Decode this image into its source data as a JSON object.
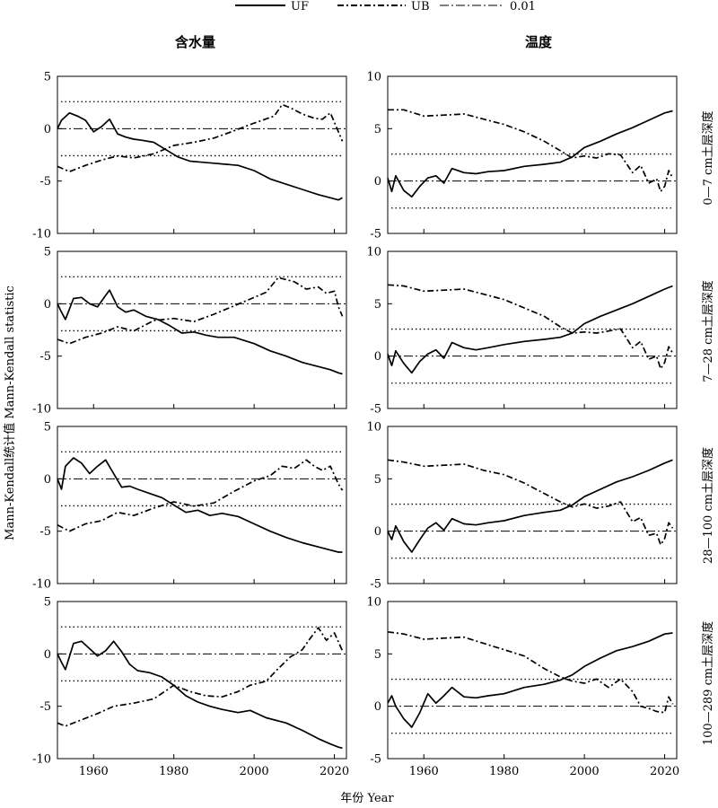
{
  "legend": {
    "uf_label": "UF",
    "ub_label": "UB",
    "sig_label": "0.01"
  },
  "columns": {
    "left_title": "含水量",
    "right_title": "温度"
  },
  "axes": {
    "ylabel": "Mann-Kendall统计值 Mann-Kendall statistic",
    "xlabel": "年份 Year",
    "x_ticks": [
      1960,
      1980,
      2000,
      2020
    ],
    "left_y_ticks": [
      5,
      0,
      -5,
      -10
    ],
    "right_y_ticks": [
      10,
      5,
      0,
      -5
    ],
    "left_ylim": [
      -10,
      5
    ],
    "right_ylim": [
      -5,
      10
    ],
    "xlim": [
      1951,
      2023
    ]
  },
  "rows": {
    "labels": [
      "0—7 cm土层深度",
      "7—28 cm土层深度",
      "28—100 cm土层深度",
      "100—289 cm土层深度"
    ]
  },
  "colors": {
    "line": "#000000",
    "background": "#ffffff"
  },
  "chart_data": [
    {
      "type": "line",
      "panel": "soil-moisture-0-7cm",
      "x_start": 1951,
      "x_end": 2022,
      "ylim": [
        -10,
        5
      ],
      "sig": 2.58,
      "series": [
        {
          "name": "UF",
          "x": [
            1951,
            1952,
            1954,
            1956,
            1958,
            1960,
            1962,
            1964,
            1966,
            1968,
            1970,
            1972,
            1975,
            1978,
            1981,
            1984,
            1987,
            1990,
            1993,
            1996,
            2000,
            2004,
            2008,
            2012,
            2016,
            2019,
            2021,
            2022
          ],
          "y": [
            0.0,
            0.8,
            1.5,
            1.2,
            0.8,
            -0.3,
            0.2,
            0.9,
            -0.5,
            -0.8,
            -1.0,
            -1.1,
            -1.3,
            -2.0,
            -2.7,
            -3.1,
            -3.2,
            -3.3,
            -3.4,
            -3.5,
            -4.0,
            -4.8,
            -5.3,
            -5.8,
            -6.3,
            -6.6,
            -6.8,
            -6.6
          ]
        },
        {
          "name": "UB",
          "x": [
            1951,
            1954,
            1958,
            1962,
            1966,
            1970,
            1975,
            1980,
            1985,
            1990,
            1995,
            1999,
            2002,
            2005,
            2007,
            2009,
            2012,
            2015,
            2017,
            2019,
            2021,
            2022
          ],
          "y": [
            -3.6,
            -4.1,
            -3.5,
            -3.0,
            -2.6,
            -2.8,
            -2.4,
            -1.6,
            -1.3,
            -0.9,
            -0.2,
            0.4,
            0.8,
            1.2,
            2.3,
            2.0,
            1.4,
            1.0,
            0.9,
            1.5,
            -0.3,
            -1.2
          ]
        }
      ]
    },
    {
      "type": "line",
      "panel": "temperature-0-7cm",
      "x_start": 1951,
      "x_end": 2022,
      "ylim": [
        -5,
        10
      ],
      "sig": 2.58,
      "series": [
        {
          "name": "UF",
          "x": [
            1951,
            1952,
            1953,
            1955,
            1957,
            1959,
            1961,
            1963,
            1965,
            1967,
            1970,
            1973,
            1976,
            1980,
            1985,
            1990,
            1994,
            1997,
            2000,
            2004,
            2008,
            2012,
            2016,
            2020,
            2022
          ],
          "y": [
            0.3,
            -1.0,
            0.5,
            -0.9,
            -1.5,
            -0.5,
            0.3,
            0.5,
            -0.2,
            1.2,
            0.8,
            0.7,
            0.9,
            1.0,
            1.4,
            1.6,
            1.8,
            2.3,
            3.2,
            3.8,
            4.5,
            5.1,
            5.8,
            6.5,
            6.7
          ]
        },
        {
          "name": "UB",
          "x": [
            1951,
            1955,
            1960,
            1965,
            1970,
            1975,
            1980,
            1985,
            1990,
            1994,
            1997,
            2000,
            2003,
            2006,
            2009,
            2012,
            2014,
            2016,
            2018,
            2019,
            2020,
            2021,
            2022
          ],
          "y": [
            6.8,
            6.8,
            6.2,
            6.3,
            6.4,
            5.9,
            5.4,
            4.7,
            3.8,
            2.9,
            2.2,
            2.4,
            2.2,
            2.6,
            2.5,
            0.8,
            1.5,
            -0.2,
            0.2,
            -1.0,
            -0.5,
            1.0,
            0.3
          ]
        }
      ]
    },
    {
      "type": "line",
      "panel": "soil-moisture-7-28cm",
      "x_start": 1951,
      "x_end": 2022,
      "ylim": [
        -10,
        5
      ],
      "sig": 2.58,
      "series": [
        {
          "name": "UF",
          "x": [
            1951,
            1952,
            1953,
            1955,
            1957,
            1959,
            1961,
            1963,
            1964,
            1966,
            1968,
            1970,
            1973,
            1976,
            1979,
            1982,
            1985,
            1988,
            1991,
            1995,
            2000,
            2004,
            2008,
            2012,
            2016,
            2019,
            2021,
            2022
          ],
          "y": [
            0.0,
            -0.8,
            -1.5,
            0.5,
            0.6,
            0.0,
            -0.3,
            0.8,
            1.3,
            -0.3,
            -0.8,
            -0.6,
            -1.2,
            -1.5,
            -2.1,
            -2.8,
            -2.7,
            -3.0,
            -3.2,
            -3.2,
            -3.8,
            -4.5,
            -5.0,
            -5.6,
            -6.0,
            -6.3,
            -6.6,
            -6.7
          ]
        },
        {
          "name": "UB",
          "x": [
            1951,
            1954,
            1958,
            1962,
            1966,
            1970,
            1975,
            1980,
            1985,
            1990,
            1995,
            2000,
            2003,
            2006,
            2008,
            2010,
            2013,
            2016,
            2018,
            2020,
            2021,
            2022
          ],
          "y": [
            -3.4,
            -3.8,
            -3.2,
            -2.8,
            -2.2,
            -2.6,
            -1.6,
            -1.4,
            -1.7,
            -1.0,
            -0.2,
            0.6,
            1.1,
            2.5,
            2.3,
            2.1,
            1.4,
            1.6,
            1.0,
            1.2,
            -0.3,
            -1.2
          ]
        }
      ]
    },
    {
      "type": "line",
      "panel": "temperature-7-28cm",
      "x_start": 1951,
      "x_end": 2022,
      "ylim": [
        -5,
        10
      ],
      "sig": 2.58,
      "series": [
        {
          "name": "UF",
          "x": [
            1951,
            1952,
            1953,
            1955,
            1957,
            1959,
            1961,
            1963,
            1965,
            1967,
            1970,
            1973,
            1976,
            1980,
            1985,
            1990,
            1994,
            1997,
            2000,
            2004,
            2008,
            2012,
            2016,
            2020,
            2022
          ],
          "y": [
            0.2,
            -0.9,
            0.5,
            -0.7,
            -1.6,
            -0.5,
            0.2,
            0.6,
            -0.2,
            1.3,
            0.8,
            0.6,
            0.8,
            1.1,
            1.4,
            1.6,
            1.8,
            2.2,
            3.1,
            3.8,
            4.4,
            5.0,
            5.7,
            6.4,
            6.7
          ]
        },
        {
          "name": "UB",
          "x": [
            1951,
            1955,
            1960,
            1965,
            1970,
            1975,
            1980,
            1985,
            1990,
            1994,
            1997,
            2000,
            2003,
            2006,
            2009,
            2012,
            2014,
            2016,
            2018,
            2019,
            2020,
            2021,
            2022
          ],
          "y": [
            6.8,
            6.7,
            6.2,
            6.3,
            6.4,
            5.9,
            5.4,
            4.6,
            3.8,
            2.8,
            2.2,
            2.3,
            2.2,
            2.4,
            2.6,
            0.8,
            1.4,
            -0.3,
            0.0,
            -1.2,
            -0.6,
            0.9,
            0.3
          ]
        }
      ]
    },
    {
      "type": "line",
      "panel": "soil-moisture-28-100cm",
      "x_start": 1951,
      "x_end": 2022,
      "ylim": [
        -10,
        5
      ],
      "sig": 2.58,
      "series": [
        {
          "name": "UF",
          "x": [
            1951,
            1952,
            1953,
            1955,
            1957,
            1959,
            1961,
            1963,
            1965,
            1967,
            1969,
            1971,
            1974,
            1977,
            1980,
            1983,
            1986,
            1989,
            1992,
            1996,
            2000,
            2004,
            2008,
            2012,
            2016,
            2019,
            2021,
            2022
          ],
          "y": [
            0.0,
            -1.0,
            1.2,
            2.0,
            1.5,
            0.5,
            1.2,
            1.8,
            0.5,
            -0.8,
            -0.7,
            -1.0,
            -1.4,
            -1.8,
            -2.5,
            -3.2,
            -3.0,
            -3.5,
            -3.3,
            -3.6,
            -4.3,
            -5.0,
            -5.6,
            -6.1,
            -6.5,
            -6.8,
            -7.0,
            -7.0
          ]
        },
        {
          "name": "UB",
          "x": [
            1951,
            1954,
            1958,
            1962,
            1966,
            1970,
            1975,
            1980,
            1985,
            1990,
            1995,
            2000,
            2004,
            2007,
            2010,
            2013,
            2015,
            2017,
            2019,
            2021,
            2022
          ],
          "y": [
            -4.4,
            -5.0,
            -4.3,
            -4.0,
            -3.2,
            -3.5,
            -2.8,
            -2.2,
            -2.6,
            -2.3,
            -1.2,
            -0.2,
            0.3,
            1.2,
            1.0,
            1.8,
            1.2,
            0.8,
            1.2,
            -0.5,
            -1.1
          ]
        }
      ]
    },
    {
      "type": "line",
      "panel": "temperature-28-100cm",
      "x_start": 1951,
      "x_end": 2022,
      "ylim": [
        -5,
        10
      ],
      "sig": 2.58,
      "series": [
        {
          "name": "UF",
          "x": [
            1951,
            1952,
            1953,
            1955,
            1957,
            1959,
            1961,
            1963,
            1965,
            1967,
            1970,
            1973,
            1976,
            1980,
            1985,
            1990,
            1994,
            1997,
            2000,
            2004,
            2008,
            2012,
            2016,
            2020,
            2022
          ],
          "y": [
            0.0,
            -0.8,
            0.5,
            -1.0,
            -2.0,
            -0.8,
            0.3,
            0.8,
            0.1,
            1.2,
            0.7,
            0.6,
            0.8,
            1.0,
            1.5,
            1.8,
            2.0,
            2.5,
            3.3,
            4.0,
            4.7,
            5.2,
            5.8,
            6.5,
            6.8
          ]
        },
        {
          "name": "UB",
          "x": [
            1951,
            1955,
            1960,
            1965,
            1970,
            1975,
            1980,
            1985,
            1990,
            1994,
            1997,
            2000,
            2003,
            2006,
            2009,
            2012,
            2014,
            2016,
            2018,
            2019,
            2020,
            2021,
            2022
          ],
          "y": [
            6.8,
            6.6,
            6.2,
            6.3,
            6.4,
            5.8,
            5.4,
            4.6,
            3.6,
            2.8,
            2.3,
            2.6,
            2.2,
            2.4,
            2.8,
            0.9,
            1.3,
            -0.4,
            -0.2,
            -1.3,
            -0.7,
            0.8,
            0.3
          ]
        }
      ]
    },
    {
      "type": "line",
      "panel": "soil-moisture-100-289cm",
      "x_start": 1951,
      "x_end": 2022,
      "ylim": [
        -10,
        5
      ],
      "sig": 2.58,
      "series": [
        {
          "name": "UF",
          "x": [
            1951,
            1952,
            1953,
            1955,
            1957,
            1959,
            1961,
            1963,
            1965,
            1967,
            1969,
            1971,
            1974,
            1977,
            1980,
            1983,
            1986,
            1989,
            1992,
            1996,
            1999,
            2003,
            2008,
            2012,
            2016,
            2019,
            2021,
            2022
          ],
          "y": [
            0.0,
            -0.8,
            -1.5,
            1.0,
            1.2,
            0.5,
            -0.2,
            0.3,
            1.2,
            0.2,
            -1.0,
            -1.6,
            -1.8,
            -2.2,
            -3.0,
            -4.0,
            -4.6,
            -5.0,
            -5.3,
            -5.6,
            -5.4,
            -6.1,
            -6.6,
            -7.3,
            -8.1,
            -8.6,
            -8.9,
            -9.0
          ]
        },
        {
          "name": "UB",
          "x": [
            1951,
            1953,
            1957,
            1961,
            1965,
            1970,
            1975,
            1980,
            1984,
            1988,
            1992,
            1996,
            1999,
            2003,
            2006,
            2009,
            2012,
            2014,
            2016,
            2018,
            2020,
            2022
          ],
          "y": [
            -6.6,
            -6.9,
            -6.3,
            -5.7,
            -5.0,
            -4.7,
            -4.3,
            -3.0,
            -3.6,
            -4.0,
            -4.1,
            -3.6,
            -3.0,
            -2.6,
            -1.4,
            -0.3,
            0.4,
            1.5,
            2.5,
            1.3,
            2.0,
            0.3
          ]
        }
      ]
    },
    {
      "type": "line",
      "panel": "temperature-100-289cm",
      "x_start": 1951,
      "x_end": 2022,
      "ylim": [
        -5,
        10
      ],
      "sig": 2.58,
      "series": [
        {
          "name": "UF",
          "x": [
            1951,
            1952,
            1953,
            1955,
            1957,
            1959,
            1961,
            1963,
            1965,
            1967,
            1970,
            1973,
            1976,
            1980,
            1985,
            1990,
            1994,
            1997,
            2000,
            2004,
            2008,
            2012,
            2016,
            2020,
            2022
          ],
          "y": [
            0.3,
            1.0,
            0.0,
            -1.2,
            -2.0,
            -0.6,
            1.2,
            0.3,
            1.0,
            1.8,
            0.9,
            0.8,
            1.0,
            1.2,
            1.8,
            2.1,
            2.5,
            3.0,
            3.8,
            4.6,
            5.3,
            5.7,
            6.2,
            6.9,
            7.0
          ]
        },
        {
          "name": "UB",
          "x": [
            1951,
            1955,
            1960,
            1965,
            1970,
            1975,
            1980,
            1985,
            1990,
            1994,
            1997,
            2000,
            2003,
            2006,
            2009,
            2012,
            2014,
            2016,
            2018,
            2020,
            2021,
            2022
          ],
          "y": [
            7.1,
            6.9,
            6.4,
            6.5,
            6.6,
            6.0,
            5.4,
            4.8,
            3.6,
            2.8,
            2.4,
            2.2,
            2.6,
            1.8,
            2.6,
            1.4,
            0.0,
            -0.2,
            -0.5,
            -0.6,
            0.9,
            0.2
          ]
        }
      ]
    }
  ]
}
